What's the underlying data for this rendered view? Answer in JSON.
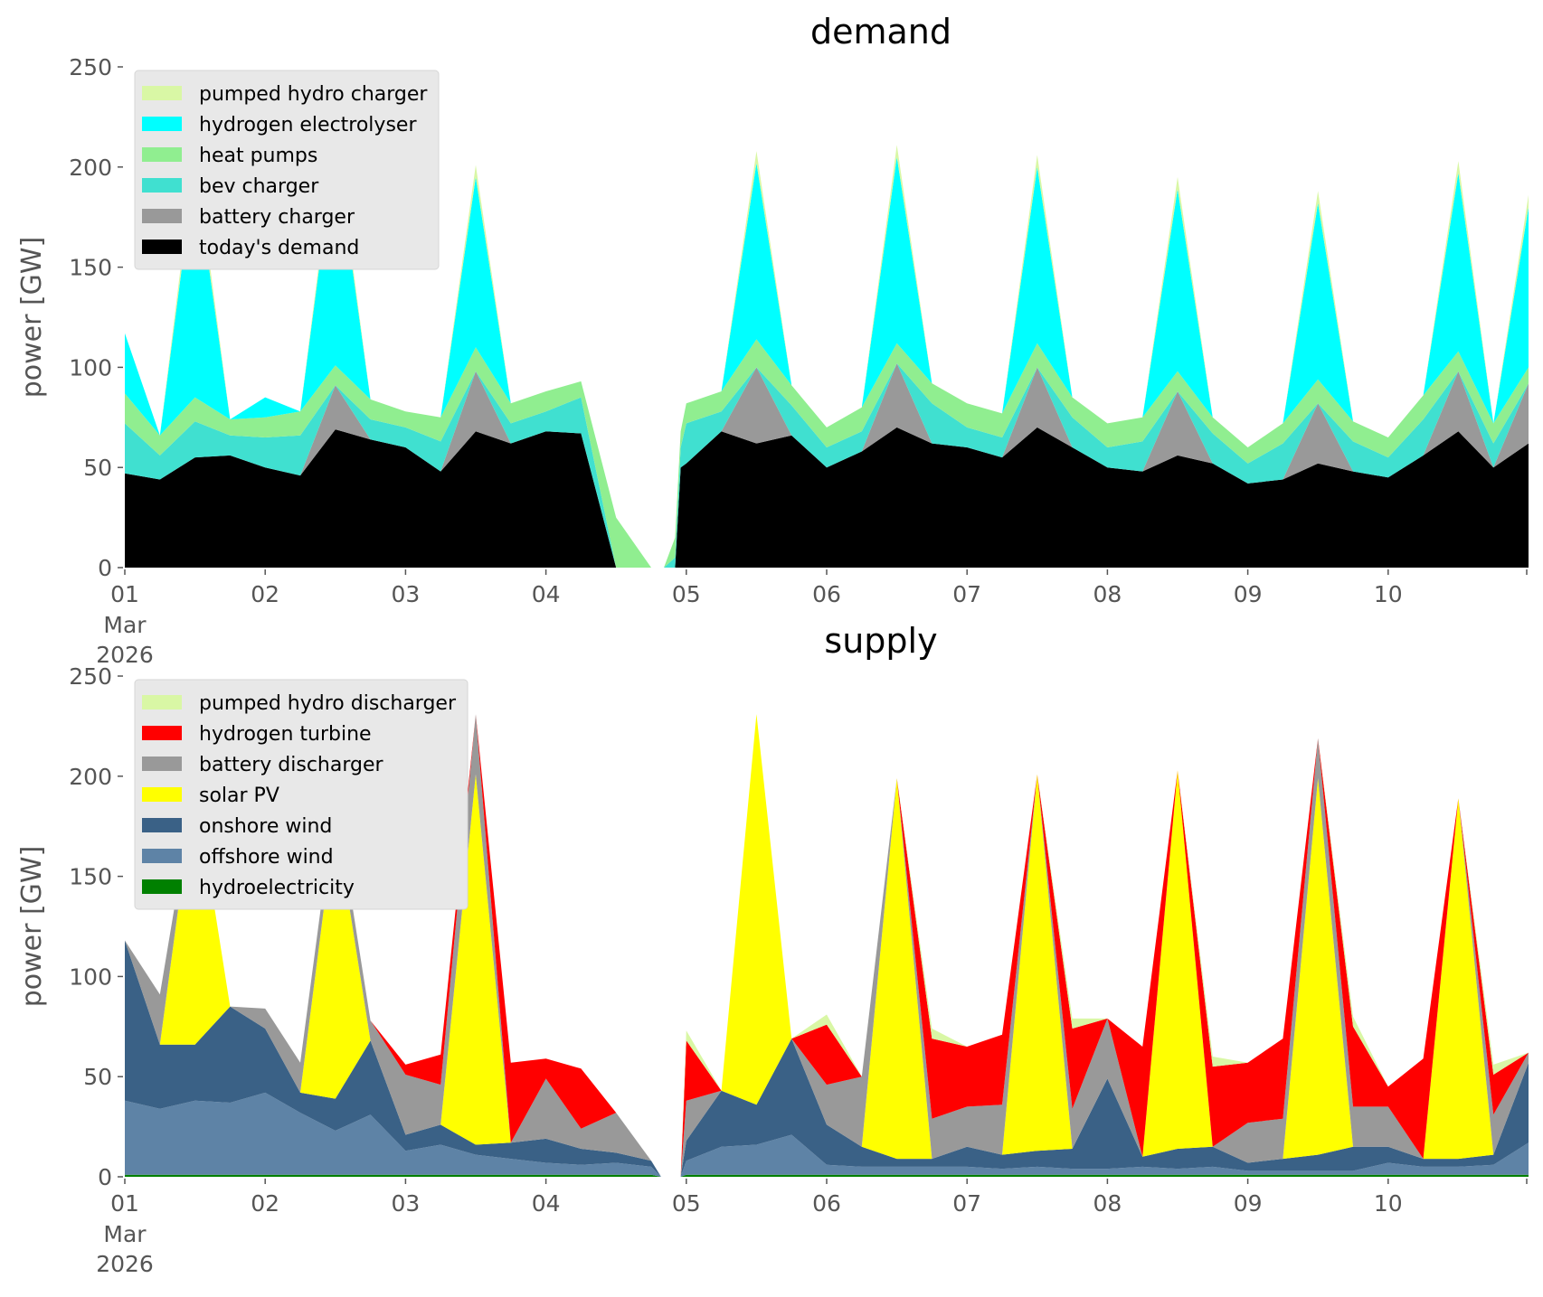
{
  "chart_data": [
    {
      "type": "area",
      "stacked": true,
      "title": "demand",
      "xlabel": "",
      "ylabel": "power [GW]",
      "x_start": "2026-03-01",
      "x_end": "2026-03-10T23:00",
      "xlim_days": [
        0,
        10
      ],
      "ylim": [
        0,
        250
      ],
      "yticks": [
        0,
        50,
        100,
        150,
        200,
        250
      ],
      "xticks": [
        "01",
        "02",
        "03",
        "04",
        "05",
        "06",
        "07",
        "08",
        "09",
        "10"
      ],
      "xtick_first_extra": [
        "Mar",
        "2026"
      ],
      "grid": false,
      "legend_position": "top-left",
      "legend": [
        {
          "label": "pumped hydro charger",
          "color": "#d9f7a5"
        },
        {
          "label": "hydrogen electrolyser",
          "color": "#00ffff"
        },
        {
          "label": "heat pumps",
          "color": "#90ee90"
        },
        {
          "label": "bev charger",
          "color": "#40e0d0"
        },
        {
          "label": "battery charger",
          "color": "#999999"
        },
        {
          "label": "today's demand",
          "color": "#000000"
        }
      ],
      "x_days": [
        0,
        0.25,
        0.5,
        0.75,
        1,
        1.25,
        1.5,
        1.75,
        2,
        2.25,
        2.5,
        2.75,
        3,
        3.25,
        3.5,
        3.75,
        3.82,
        3.84,
        3.92,
        3.96,
        4,
        4.25,
        4.5,
        4.75,
        5,
        5.25,
        5.5,
        5.75,
        6,
        6.25,
        6.5,
        6.75,
        7,
        7.25,
        7.5,
        7.75,
        8,
        8.25,
        8.5,
        8.75,
        9,
        9.25,
        9.5,
        9.75,
        10
      ],
      "series": [
        {
          "name": "today's demand",
          "color": "#000000",
          "values": [
            47,
            44,
            55,
            56,
            50,
            46,
            69,
            64,
            60,
            48,
            68,
            62,
            68,
            67,
            0,
            0,
            0,
            0,
            0,
            50,
            52,
            68,
            62,
            66,
            50,
            58,
            70,
            62,
            60,
            55,
            70,
            60,
            50,
            48,
            56,
            52,
            42,
            44,
            52,
            48,
            45,
            56,
            68,
            50,
            62
          ]
        },
        {
          "name": "battery charger",
          "color": "#999999",
          "values": [
            0,
            0,
            0,
            0,
            0,
            0,
            22,
            0,
            0,
            0,
            30,
            0,
            0,
            0,
            0,
            0,
            0,
            0,
            0,
            0,
            0,
            0,
            38,
            0,
            0,
            0,
            32,
            0,
            0,
            0,
            30,
            0,
            0,
            0,
            32,
            0,
            0,
            0,
            30,
            0,
            0,
            0,
            30,
            0,
            30
          ]
        },
        {
          "name": "bev charger",
          "color": "#40e0d0",
          "values": [
            25,
            12,
            18,
            10,
            15,
            20,
            0,
            10,
            10,
            15,
            0,
            10,
            10,
            18,
            0,
            0,
            0,
            0,
            5,
            10,
            20,
            10,
            0,
            15,
            10,
            10,
            0,
            20,
            10,
            10,
            0,
            15,
            10,
            15,
            0,
            15,
            10,
            18,
            0,
            15,
            10,
            18,
            0,
            12,
            0
          ]
        },
        {
          "name": "heat pumps",
          "color": "#90ee90",
          "values": [
            15,
            10,
            12,
            8,
            10,
            12,
            10,
            10,
            8,
            12,
            12,
            10,
            10,
            8,
            25,
            0,
            0,
            0,
            10,
            8,
            10,
            10,
            14,
            10,
            10,
            12,
            10,
            10,
            12,
            12,
            12,
            10,
            12,
            12,
            10,
            8,
            8,
            10,
            12,
            10,
            10,
            12,
            10,
            10,
            8
          ]
        },
        {
          "name": "hydrogen electrolyser",
          "color": "#00ffff",
          "values": [
            30,
            0,
            115,
            0,
            10,
            0,
            110,
            0,
            0,
            0,
            85,
            0,
            0,
            0,
            0,
            0,
            0,
            0,
            0,
            0,
            0,
            0,
            88,
            0,
            0,
            0,
            93,
            0,
            0,
            0,
            88,
            0,
            0,
            0,
            91,
            0,
            0,
            0,
            88,
            0,
            0,
            0,
            89,
            0,
            80
          ]
        },
        {
          "name": "pumped hydro charger",
          "color": "#d9f7a5",
          "values": [
            0,
            0,
            8,
            0,
            0,
            0,
            6,
            0,
            0,
            0,
            6,
            0,
            0,
            0,
            0,
            0,
            0,
            0,
            0,
            0,
            0,
            0,
            6,
            0,
            0,
            0,
            6,
            0,
            0,
            0,
            6,
            0,
            0,
            0,
            6,
            0,
            0,
            0,
            6,
            0,
            0,
            0,
            6,
            0,
            6
          ]
        }
      ]
    },
    {
      "type": "area",
      "stacked": true,
      "title": "supply",
      "xlabel": "",
      "ylabel": "power [GW]",
      "x_start": "2026-03-01",
      "x_end": "2026-03-10T23:00",
      "xlim_days": [
        0,
        10
      ],
      "ylim": [
        0,
        250
      ],
      "yticks": [
        0,
        50,
        100,
        150,
        200,
        250
      ],
      "xticks": [
        "01",
        "02",
        "03",
        "04",
        "05",
        "06",
        "07",
        "08",
        "09",
        "10"
      ],
      "xtick_first_extra": [
        "Mar",
        "2026"
      ],
      "grid": false,
      "legend_position": "top-left",
      "legend": [
        {
          "label": "pumped hydro discharger",
          "color": "#d9f7a5"
        },
        {
          "label": "hydrogen turbine",
          "color": "#ff0000"
        },
        {
          "label": "battery discharger",
          "color": "#999999"
        },
        {
          "label": "solar PV",
          "color": "#ffff00"
        },
        {
          "label": "onshore wind",
          "color": "#3a6186"
        },
        {
          "label": "offshore wind",
          "color": "#5e83a6"
        },
        {
          "label": "hydroelectricity",
          "color": "#008000"
        }
      ],
      "x_days": [
        0,
        0.25,
        0.5,
        0.75,
        1,
        1.25,
        1.5,
        1.75,
        2,
        2.25,
        2.5,
        2.75,
        3,
        3.25,
        3.5,
        3.75,
        3.82,
        3.84,
        3.92,
        3.96,
        4,
        4.25,
        4.5,
        4.75,
        5,
        5.25,
        5.5,
        5.75,
        6,
        6.25,
        6.5,
        6.75,
        7,
        7.25,
        7.5,
        7.75,
        8,
        8.25,
        8.5,
        8.75,
        9,
        9.25,
        9.5,
        9.75,
        10
      ],
      "series": [
        {
          "name": "hydroelectricity",
          "color": "#008000",
          "values": [
            1,
            1,
            1,
            1,
            1,
            1,
            1,
            1,
            1,
            1,
            1,
            1,
            1,
            1,
            1,
            1,
            0,
            0,
            0,
            0,
            1,
            1,
            1,
            1,
            1,
            1,
            1,
            1,
            1,
            1,
            1,
            1,
            1,
            1,
            1,
            1,
            1,
            1,
            1,
            1,
            1,
            1,
            1,
            1,
            1
          ]
        },
        {
          "name": "offshore wind",
          "color": "#5e83a6",
          "values": [
            37,
            33,
            37,
            36,
            41,
            31,
            22,
            30,
            12,
            15,
            10,
            8,
            6,
            5,
            6,
            4,
            0,
            0,
            0,
            0,
            7,
            14,
            15,
            20,
            5,
            4,
            4,
            4,
            4,
            3,
            4,
            3,
            3,
            4,
            3,
            4,
            2,
            2,
            2,
            2,
            6,
            4,
            4,
            5,
            16
          ]
        },
        {
          "name": "onshore wind",
          "color": "#3a6186",
          "values": [
            80,
            32,
            28,
            48,
            32,
            10,
            16,
            37,
            8,
            10,
            5,
            8,
            12,
            8,
            5,
            3,
            0,
            0,
            0,
            0,
            10,
            28,
            20,
            48,
            20,
            10,
            4,
            4,
            10,
            7,
            8,
            10,
            45,
            5,
            10,
            10,
            4,
            6,
            8,
            12,
            8,
            4,
            4,
            5,
            40
          ]
        },
        {
          "name": "solar PV",
          "color": "#ffff00",
          "values": [
            0,
            0,
            130,
            0,
            0,
            0,
            140,
            0,
            0,
            0,
            185,
            0,
            0,
            0,
            0,
            0,
            0,
            0,
            0,
            0,
            0,
            0,
            195,
            0,
            0,
            0,
            190,
            0,
            0,
            0,
            188,
            0,
            0,
            0,
            189,
            0,
            0,
            0,
            188,
            0,
            0,
            0,
            180,
            0,
            0
          ]
        },
        {
          "name": "battery discharger",
          "color": "#999999",
          "values": [
            0,
            25,
            0,
            0,
            10,
            15,
            10,
            10,
            30,
            20,
            30,
            0,
            30,
            10,
            20,
            0,
            0,
            0,
            0,
            0,
            20,
            0,
            0,
            0,
            20,
            35,
            0,
            20,
            20,
            25,
            0,
            20,
            30,
            0,
            0,
            0,
            20,
            20,
            20,
            20,
            20,
            0,
            0,
            20,
            5
          ]
        },
        {
          "name": "hydrogen turbine",
          "color": "#ff0000",
          "values": [
            0,
            0,
            0,
            0,
            0,
            0,
            0,
            0,
            5,
            15,
            0,
            40,
            10,
            30,
            0,
            0,
            0,
            0,
            0,
            0,
            30,
            0,
            0,
            0,
            30,
            0,
            0,
            40,
            30,
            35,
            0,
            40,
            0,
            55,
            0,
            40,
            30,
            40,
            0,
            40,
            10,
            50,
            0,
            20,
            0
          ]
        },
        {
          "name": "pumped hydro discharger",
          "color": "#d9f7a5",
          "values": [
            0,
            0,
            0,
            0,
            0,
            0,
            0,
            0,
            0,
            0,
            0,
            0,
            0,
            0,
            0,
            0,
            0,
            0,
            0,
            0,
            5,
            0,
            0,
            0,
            5,
            0,
            0,
            5,
            0,
            0,
            0,
            5,
            0,
            0,
            0,
            5,
            0,
            0,
            0,
            5,
            0,
            0,
            0,
            5,
            0
          ]
        }
      ]
    }
  ]
}
